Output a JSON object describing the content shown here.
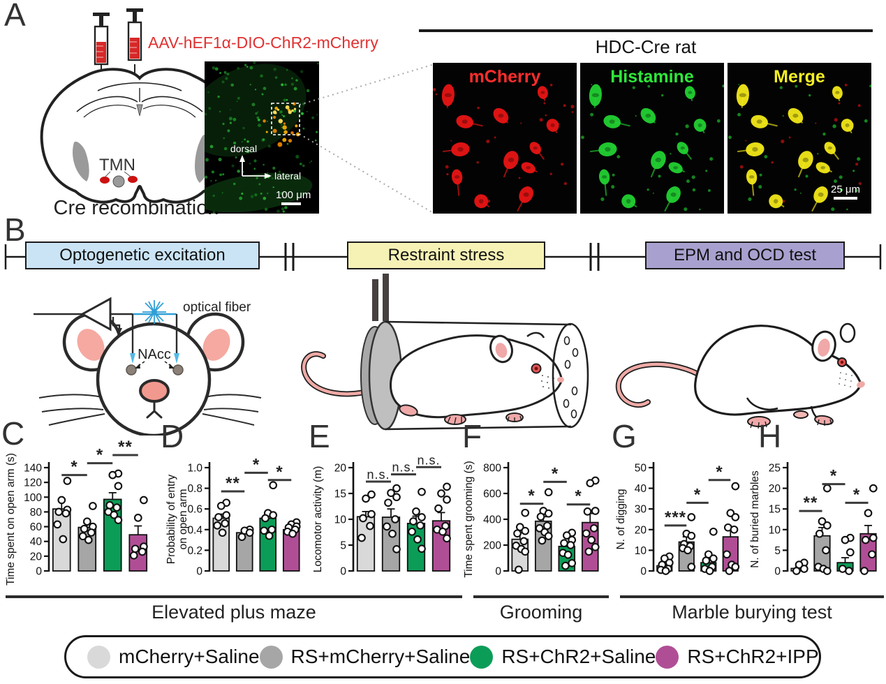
{
  "panel_a": {
    "label": "A",
    "aav_label": "AAV-hEF1α-DIO-ChR2-mCherry",
    "tmn": "TMN",
    "caption": "Cre recombination",
    "overview": {
      "dorsal": "dorsal",
      "lateral": "lateral",
      "scale": "100 μm"
    },
    "inset": {
      "title": "HDC-Cre rat",
      "tiles": [
        "mCherry",
        "Histamine",
        "Merge"
      ],
      "tile_colors": [
        "#ff2d2d",
        "#2ee83a",
        "#f4ef24"
      ],
      "scale": "25 μm"
    }
  },
  "panel_b": {
    "label": "B",
    "timeline": [
      {
        "label": "Optogenetic excitation",
        "color": "#cae4f5"
      },
      {
        "label": "Restraint stress",
        "color": "#f6f2b5"
      },
      {
        "label": "EPM and OCD test",
        "color": "#a8a1cf"
      }
    ],
    "optical_fiber": "optical fiber",
    "nacc": "NAcc"
  },
  "group_tests": [
    {
      "label": "Elevated plus maze"
    },
    {
      "label": "Grooming"
    },
    {
      "label": "Marble burying test"
    }
  ],
  "legend": {
    "items": [
      {
        "label": "mCherry+Saline",
        "color": "#d9d9d9"
      },
      {
        "label": "RS+mCherry+Saline",
        "color": "#a6a6a6"
      },
      {
        "label": "RS+ChR2+Saline",
        "color": "#0b9d57"
      },
      {
        "label": "RS+ChR2+IPP",
        "color": "#b04e95"
      }
    ]
  },
  "chart_data": {
    "type": "bar",
    "categories": [
      "mCherry+Saline",
      "RS+mCherry+Saline",
      "RS+ChR2+Saline",
      "RS+ChR2+IPP"
    ],
    "bar_colors": [
      "#d9d9d9",
      "#a6a6a6",
      "#0b9d57",
      "#b04e95"
    ],
    "charts": [
      {
        "panel": "C",
        "test": "Elevated plus maze",
        "ylabel": "Time spent on open arm (s)",
        "ylabel_lines": [
          "Time spent on open arm (s)"
        ],
        "ylim": [
          0,
          140
        ],
        "yticks": [
          0,
          20,
          40,
          60,
          80,
          100,
          120,
          140
        ],
        "ytick_labels": [
          "0",
          "20",
          "40",
          "60",
          "80",
          "100",
          "120",
          "140"
        ],
        "values": [
          84,
          59,
          97,
          49
        ],
        "errors": [
          13,
          6,
          9,
          12
        ],
        "points": [
          [
            122,
            96,
            83,
            80,
            78,
            63,
            43
          ],
          [
            88,
            67,
            60,
            57,
            52,
            47,
            42
          ],
          [
            132,
            130,
            115,
            89,
            86,
            80,
            76,
            69
          ],
          [
            96,
            72,
            33,
            30,
            26,
            21
          ]
        ],
        "sig": [
          {
            "pair": [
              0,
              1
            ],
            "label": "*",
            "y": 130
          },
          {
            "pair": [
              1,
              2
            ],
            "label": "*",
            "y": 146
          },
          {
            "pair": [
              2,
              3
            ],
            "label": "**",
            "y": 157
          }
        ]
      },
      {
        "panel": "D",
        "test": "Elevated plus maze",
        "ylabel": "Probability of entry on open arm",
        "ylabel_lines": [
          "Probability of entry",
          "on open arm"
        ],
        "ylim": [
          0,
          1
        ],
        "yticks": [
          0,
          0.2,
          0.4,
          0.6,
          0.8,
          1.0
        ],
        "ytick_labels": [
          "0",
          "0.2",
          "0.4",
          "0.6",
          "0.8",
          "1.0"
        ],
        "values": [
          0.51,
          0.37,
          0.51,
          0.4
        ],
        "errors": [
          0.04,
          0.02,
          0.05,
          0.03
        ],
        "points": [
          [
            0.66,
            0.63,
            0.54,
            0.52,
            0.46,
            0.44,
            0.37
          ],
          [
            0.4,
            0.39,
            0.37,
            0.33
          ],
          [
            0.83,
            0.56,
            0.54,
            0.51,
            0.4,
            0.39,
            0.34
          ],
          [
            0.47,
            0.45,
            0.43,
            0.42,
            0.4,
            0.38,
            0.36
          ]
        ],
        "sig": [
          {
            "pair": [
              0,
              1
            ],
            "label": "**",
            "y": 0.77
          },
          {
            "pair": [
              1,
              2
            ],
            "label": "*",
            "y": 0.95
          },
          {
            "pair": [
              2,
              3
            ],
            "label": "*",
            "y": 0.88
          }
        ]
      },
      {
        "panel": "E",
        "test": "Elevated plus maze",
        "ylabel": "Locomotor activity (m)",
        "ylabel_lines": [
          "Locomotor activity (m)"
        ],
        "ylim": [
          0,
          20
        ],
        "yticks": [
          0,
          5,
          10,
          15,
          20
        ],
        "ytick_labels": [
          "0",
          "5",
          "10",
          "15",
          "20"
        ],
        "values": [
          10.5,
          10.4,
          9.2,
          9.7
        ],
        "errors": [
          1.0,
          1.6,
          1.4,
          1.6
        ],
        "points": [
          [
            14.8,
            14.0,
            11.0,
            10.2,
            8.7,
            6.4
          ],
          [
            16.0,
            15.1,
            14.3,
            13.2,
            10.0,
            8.6,
            7.2,
            4.2
          ],
          [
            15.3,
            11.5,
            10.4,
            9.6,
            8.8,
            7.6,
            6.1,
            4.3
          ],
          [
            16.3,
            15.0,
            13.8,
            12.1,
            8.7,
            8.0,
            7.6,
            6.3
          ]
        ],
        "sig": [
          {
            "pair": [
              0,
              1
            ],
            "label": "n.s.",
            "y": 17.3
          },
          {
            "pair": [
              1,
              2
            ],
            "label": "n.s.",
            "y": 18.7
          },
          {
            "pair": [
              2,
              3
            ],
            "label": "n.s.",
            "y": 20.1
          }
        ]
      },
      {
        "panel": "F",
        "test": "Grooming",
        "ylabel": "Time spent grooming (s)",
        "ylabel_lines": [
          "Time spent grooming (s)"
        ],
        "ylim": [
          0,
          800
        ],
        "yticks": [
          0,
          200,
          400,
          600,
          800
        ],
        "ytick_labels": [
          "0",
          "200",
          "400",
          "600",
          "800"
        ],
        "values": [
          245,
          385,
          190,
          375
        ],
        "errors": [
          50,
          35,
          30,
          70
        ],
        "points": [
          [
            450,
            340,
            310,
            290,
            230,
            195,
            170,
            150,
            10
          ],
          [
            610,
            465,
            445,
            420,
            350,
            330,
            300,
            270,
            235
          ],
          [
            295,
            275,
            240,
            215,
            200,
            140,
            125,
            60,
            40
          ],
          [
            700,
            680,
            465,
            460,
            330,
            290,
            240,
            185,
            150
          ]
        ],
        "sig": [
          {
            "pair": [
              0,
              1
            ],
            "label": "*",
            "y": 520
          },
          {
            "pair": [
              1,
              2
            ],
            "label": "*",
            "y": 690
          },
          {
            "pair": [
              2,
              3
            ],
            "label": "*",
            "y": 515
          }
        ]
      },
      {
        "panel": "G",
        "test": "Marble burying test",
        "ylabel": "N. of digging",
        "ylabel_lines": [
          "N. of digging"
        ],
        "ylim": [
          0,
          50
        ],
        "yticks": [
          0,
          10,
          20,
          30,
          40,
          50
        ],
        "ytick_labels": [
          "0",
          "10",
          "20",
          "30",
          "40",
          "50"
        ],
        "values": [
          2.5,
          14,
          4,
          16.5
        ],
        "errors": [
          1.5,
          2.5,
          2,
          5
        ],
        "points": [
          [
            7,
            6,
            4,
            3,
            1,
            0.5,
            0
          ],
          [
            26,
            18,
            17,
            13,
            12,
            11,
            10,
            2
          ],
          [
            19,
            8,
            6,
            5,
            2,
            1,
            0
          ],
          [
            41,
            28,
            26,
            21,
            20,
            8,
            3,
            2,
            0
          ]
        ],
        "sig": [
          {
            "pair": [
              0,
              1
            ],
            "label": "***",
            "y": 22
          },
          {
            "pair": [
              1,
              2
            ],
            "label": "*",
            "y": 33
          },
          {
            "pair": [
              2,
              3
            ],
            "label": "*",
            "y": 44
          }
        ]
      },
      {
        "panel": "H",
        "test": "Marble burying test",
        "ylabel": "N. of buried marbles",
        "ylabel_lines": [
          "N. of buried marbles"
        ],
        "ylim": [
          0,
          25
        ],
        "yticks": [
          0,
          5,
          10,
          15,
          20,
          25
        ],
        "ytick_labels": [
          "0",
          "5",
          "10",
          "15",
          "20",
          "25"
        ],
        "values": [
          0.6,
          8.5,
          2,
          9
        ],
        "errors": [
          0.5,
          2,
          1.2,
          2
        ],
        "points": [
          [
            2,
            1.5,
            0.5,
            0
          ],
          [
            20,
            12,
            11,
            9,
            5,
            1,
            0.5,
            0
          ],
          [
            8,
            7.5,
            4.5,
            0.5,
            0
          ],
          [
            20,
            14,
            8,
            7.5,
            4,
            0
          ]
        ],
        "sig": [
          {
            "pair": [
              0,
              1
            ],
            "label": "**",
            "y": 14.5
          },
          {
            "pair": [
              1,
              2
            ],
            "label": "*",
            "y": 21
          },
          {
            "pair": [
              2,
              3
            ],
            "label": "*",
            "y": 16.5
          }
        ]
      }
    ]
  }
}
